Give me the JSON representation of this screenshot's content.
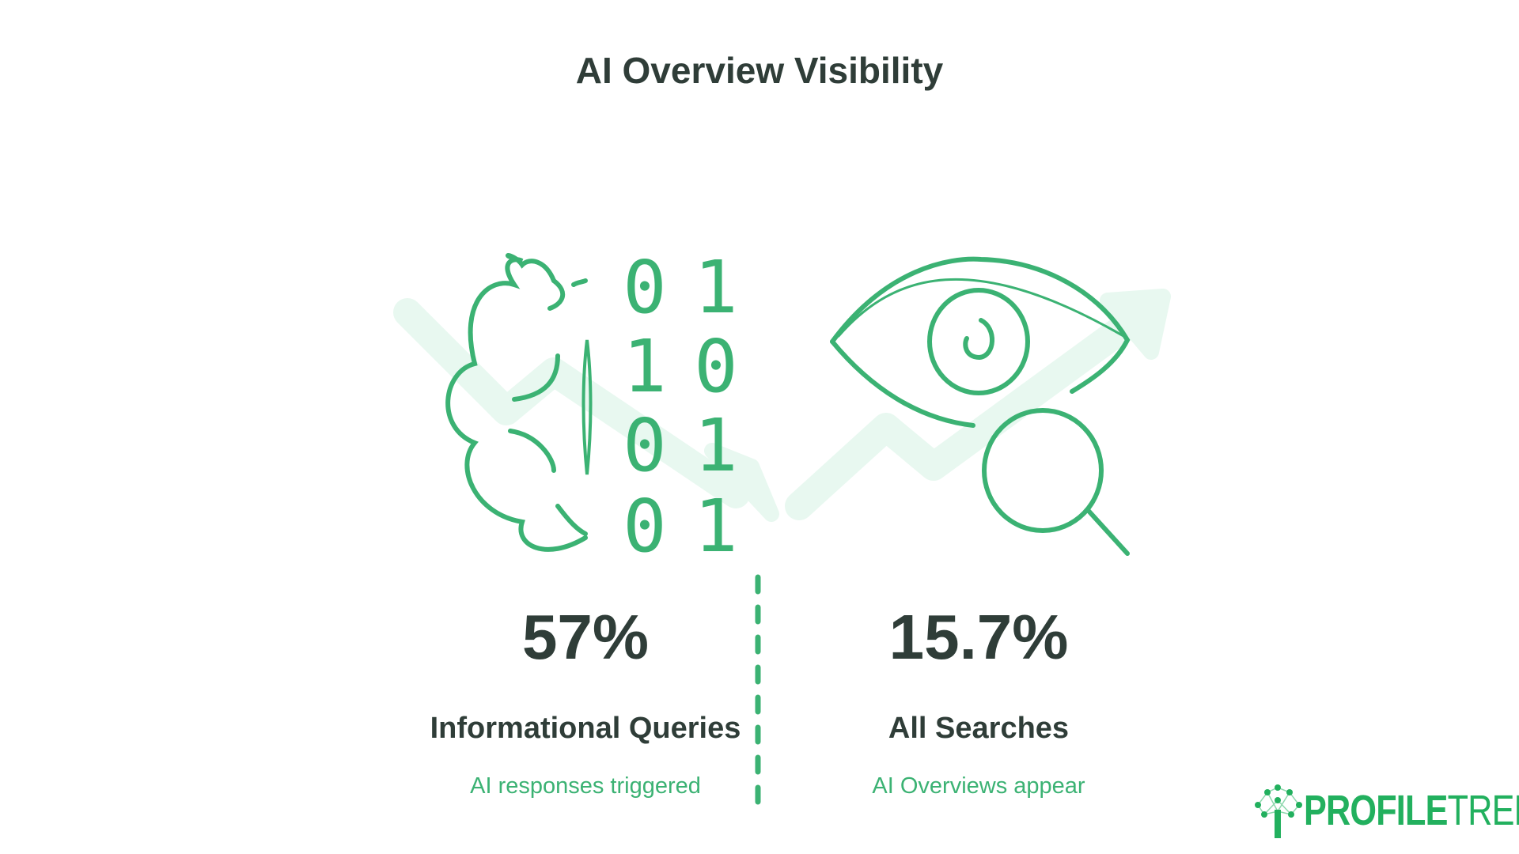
{
  "title": "AI Overview Visibility",
  "stats": [
    {
      "value": "57%",
      "label": "Informational Queries",
      "description": "AI responses triggered"
    },
    {
      "value": "15.7%",
      "label": "All Searches",
      "description": "AI Overviews appear"
    }
  ],
  "binary": [
    [
      "0",
      "1"
    ],
    [
      "1",
      "0"
    ],
    [
      "0",
      "1"
    ],
    [
      "0",
      "1"
    ]
  ],
  "logo": {
    "bold": "PROFILE",
    "light": "TREE"
  },
  "colors": {
    "accent": "#3bb273",
    "text": "#2f3d38",
    "background_arrow": "#e8f8f0"
  },
  "icons": [
    "brain-binary-icon",
    "eye-icon",
    "magnifier-icon",
    "trend-arrows-background"
  ]
}
